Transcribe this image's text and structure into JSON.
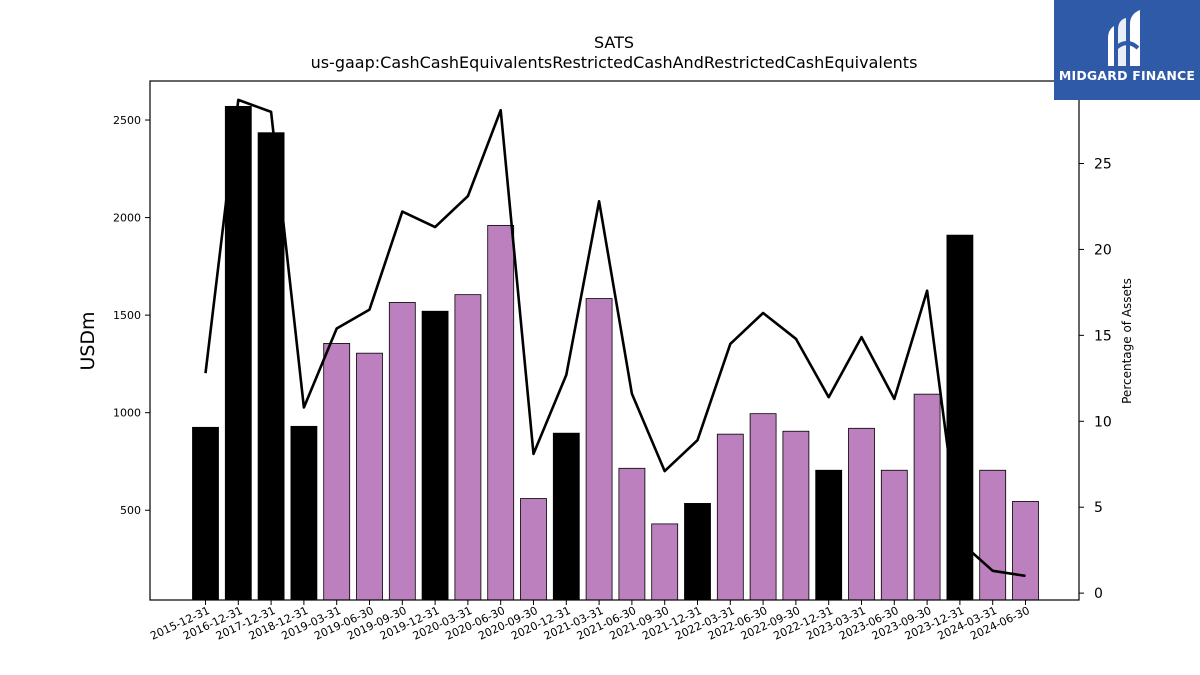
{
  "chart_data": {
    "type": "bar",
    "title": "SATS",
    "subtitle": "us-gaap:CashCashEquivalentsRestrictedCashAndRestrictedCashEquivalents",
    "ylabel": "USDm",
    "y2label": "Percentage of Assets",
    "ylim": [
      40,
      2700
    ],
    "y2lim": [
      -0.4,
      29.8
    ],
    "yticks": [
      500,
      1000,
      1500,
      2000,
      2500
    ],
    "y2ticks": [
      0,
      5,
      10,
      15,
      20,
      25
    ],
    "legend": "none",
    "grid": false,
    "categories": [
      "2015-12-31",
      "2016-12-31",
      "2017-12-31",
      "2018-12-31",
      "2019-03-31",
      "2019-06-30",
      "2019-09-30",
      "2019-12-31",
      "2020-03-31",
      "2020-06-30",
      "2020-09-30",
      "2020-12-31",
      "2021-03-31",
      "2021-06-30",
      "2021-09-30",
      "2021-12-31",
      "2022-03-31",
      "2022-06-30",
      "2022-09-30",
      "2022-12-31",
      "2023-03-31",
      "2023-06-30",
      "2023-09-30",
      "2023-12-31",
      "2024-03-31",
      "2024-06-30"
    ],
    "series": [
      {
        "kind": "bar",
        "values": [
          925,
          2570,
          2435,
          930,
          1355,
          1305,
          1565,
          1520,
          1605,
          1960,
          560,
          895,
          1585,
          715,
          430,
          535,
          890,
          995,
          905,
          705,
          920,
          705,
          1095,
          1910,
          705,
          545
        ],
        "colors": [
          "#000000",
          "#000000",
          "#000000",
          "#000000",
          "#bb80bd",
          "#bb80bd",
          "#bb80bd",
          "#000000",
          "#bb80bd",
          "#bb80bd",
          "#bb80bd",
          "#000000",
          "#bb80bd",
          "#bb80bd",
          "#bb80bd",
          "#000000",
          "#bb80bd",
          "#bb80bd",
          "#bb80bd",
          "#000000",
          "#bb80bd",
          "#bb80bd",
          "#bb80bd",
          "#000000",
          "#bb80bd",
          "#bb80bd"
        ]
      },
      {
        "kind": "line",
        "axis": "right",
        "color": "#000000",
        "values": [
          12.8,
          28.7,
          28.0,
          10.8,
          15.4,
          16.5,
          22.2,
          21.3,
          23.1,
          28.1,
          8.1,
          12.7,
          22.8,
          11.6,
          7.1,
          8.9,
          14.5,
          16.3,
          14.8,
          11.4,
          14.9,
          11.3,
          17.6,
          3.0,
          1.3,
          1.0
        ]
      }
    ]
  },
  "logo": {
    "text": "MIDGARD FINANCE",
    "background": "#2f5aa8"
  }
}
